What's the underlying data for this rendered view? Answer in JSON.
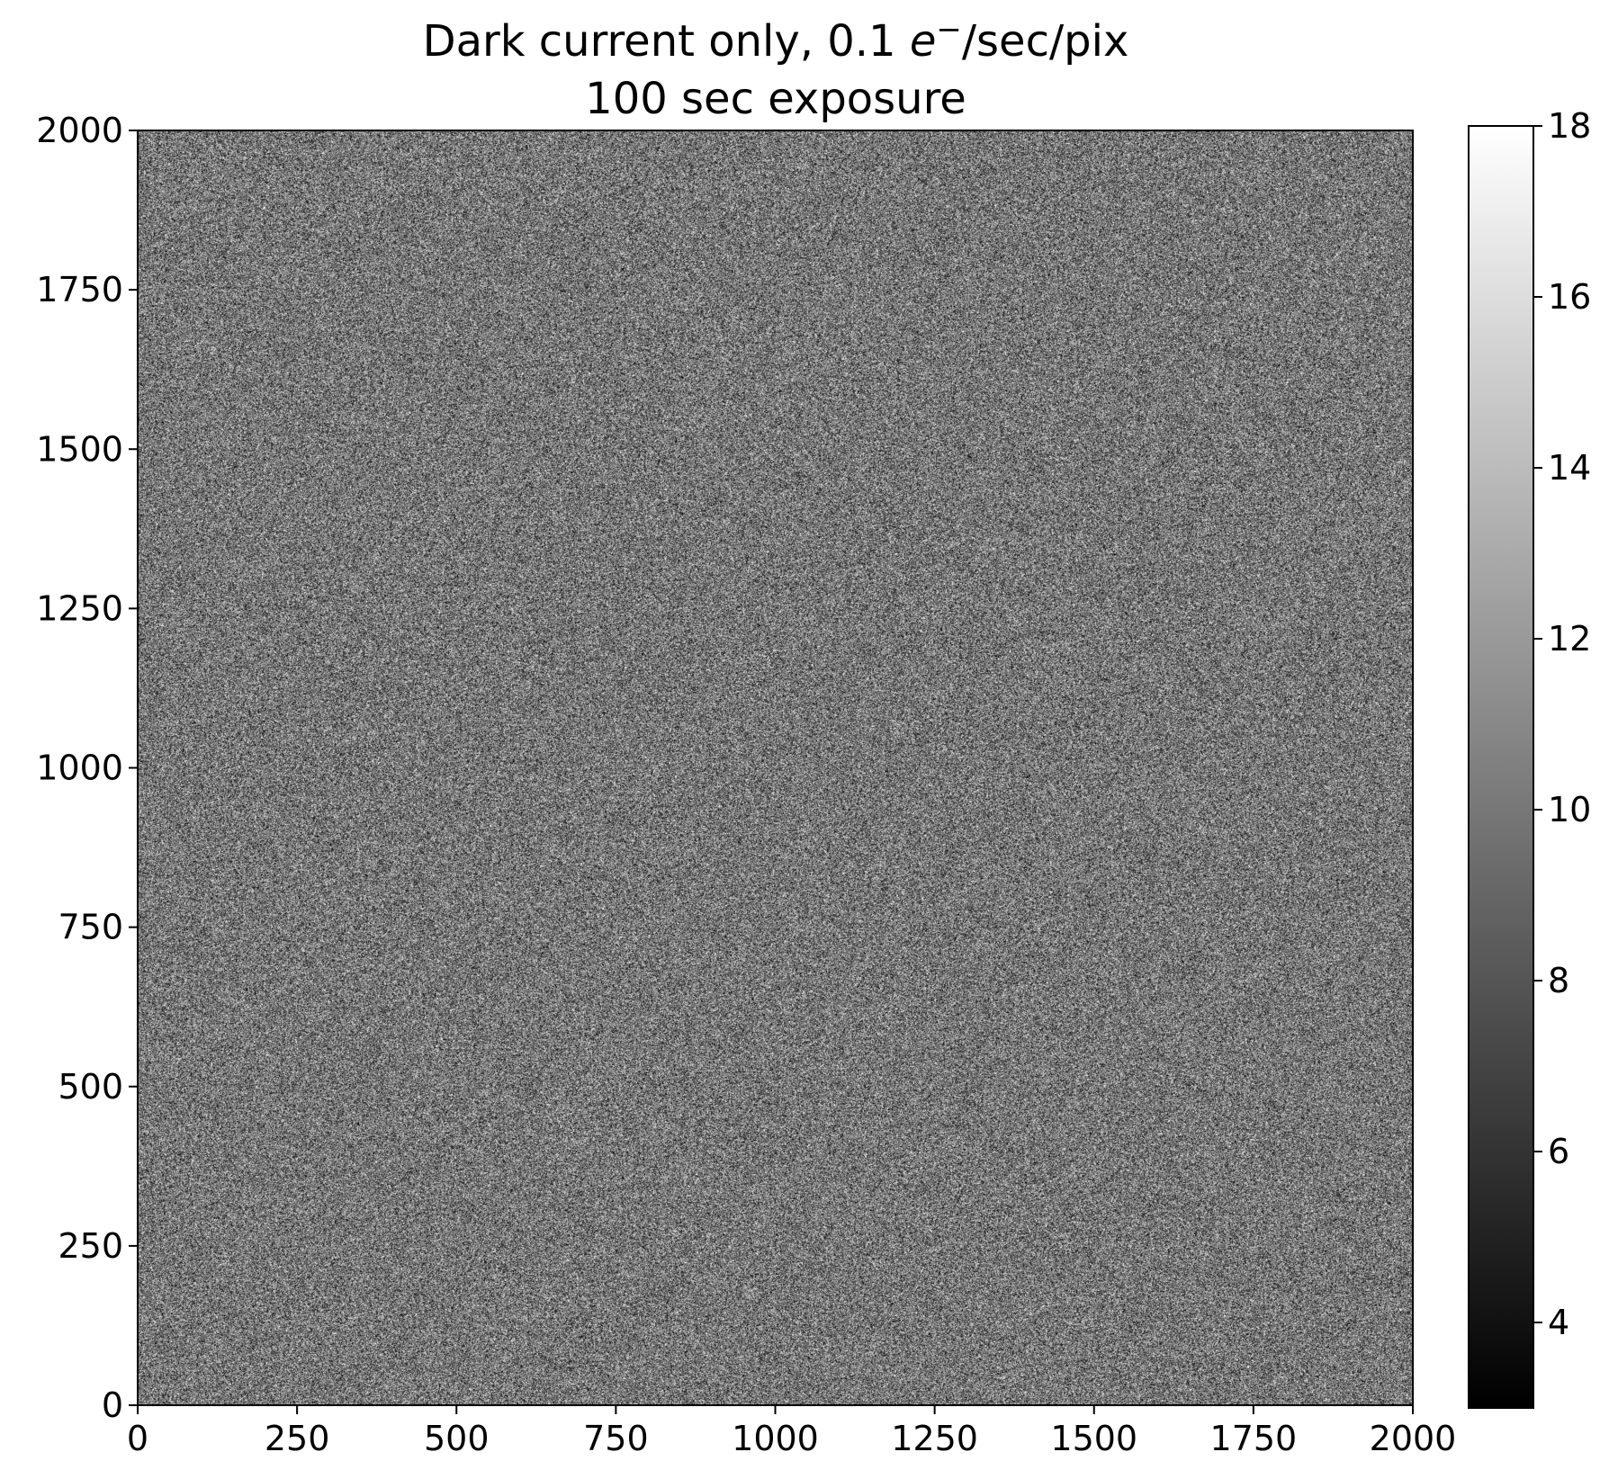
{
  "chart_data": {
    "type": "heatmap",
    "title_line1_prefix": "Dark current only, 0.1 ",
    "title_symbol": "e",
    "title_superscript": "−",
    "title_line1_suffix": "/sec/pix",
    "title_line2": "100 sec exposure",
    "colormap": "gray",
    "image_size": [
      2000,
      2000
    ],
    "xlim": [
      0,
      2000
    ],
    "ylim": [
      0,
      2000
    ],
    "xticks": [
      "0",
      "250",
      "500",
      "750",
      "1000",
      "1250",
      "1500",
      "1750",
      "2000"
    ],
    "yticks": [
      "0",
      "250",
      "500",
      "750",
      "1000",
      "1250",
      "1500",
      "1750",
      "2000"
    ],
    "colorbar": {
      "range": [
        3,
        18
      ],
      "ticks": [
        "4",
        "6",
        "8",
        "10",
        "12",
        "14",
        "16",
        "18"
      ],
      "min_color": "#000000",
      "max_color": "#ffffff"
    },
    "pixel_mean": 10,
    "pixel_std": 3.16,
    "distribution": "Poisson"
  }
}
